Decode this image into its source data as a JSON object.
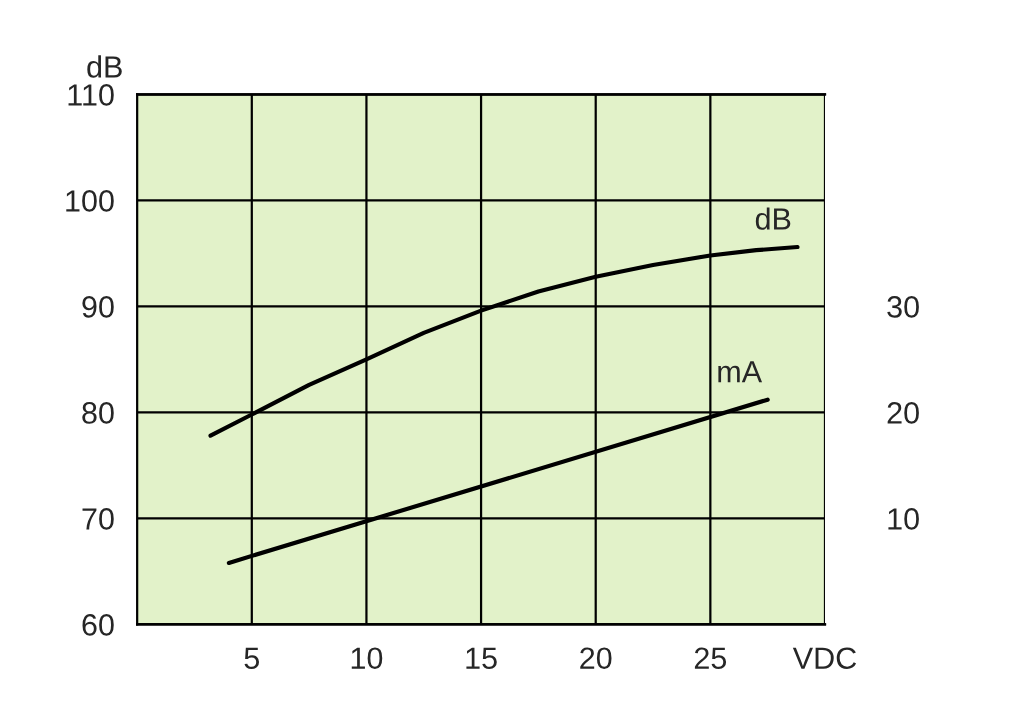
{
  "chart_data": {
    "type": "line",
    "ylabel": "dB",
    "xlim": [
      0,
      30
    ],
    "xticks": [
      5,
      10,
      15,
      20,
      25,
      {
        "value": 30,
        "label": "VDC"
      }
    ],
    "ylim": [
      60,
      110
    ],
    "yticks": [
      60,
      70,
      80,
      90,
      100,
      110
    ],
    "y2lim": [
      0,
      50
    ],
    "y2ticks": [
      10,
      20,
      30
    ],
    "grid": true,
    "legend": false,
    "series": [
      {
        "name": "dB",
        "color": "#000000",
        "x": [
          3.2,
          5,
          7.5,
          10,
          12.5,
          15,
          17.5,
          20,
          22.5,
          25,
          27,
          28.8
        ],
        "values": [
          77.8,
          79.8,
          82.6,
          85.0,
          87.5,
          89.6,
          91.4,
          92.8,
          93.9,
          94.8,
          95.3,
          95.6
        ]
      },
      {
        "name": "mA",
        "axis": "y2",
        "color": "#000000",
        "x": [
          4.0,
          27.5
        ],
        "values": [
          5.8,
          21.2
        ]
      }
    ]
  }
}
